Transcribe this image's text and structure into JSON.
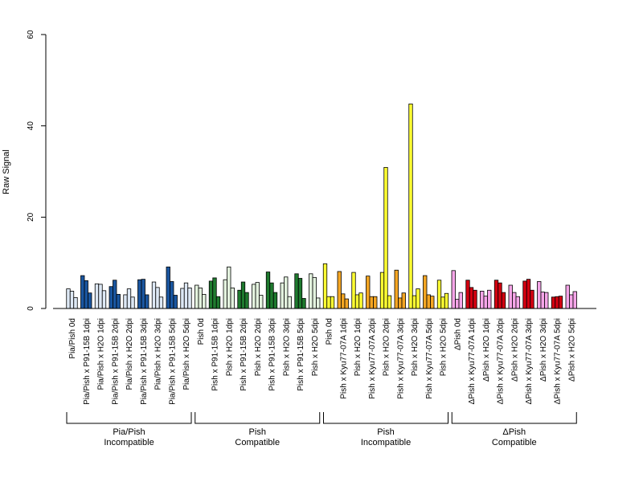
{
  "chart_data": {
    "type": "bar",
    "ylabel": "Raw Signal",
    "ylim": [
      0,
      60
    ],
    "yticks": [
      0,
      20,
      40,
      60
    ],
    "grid": false,
    "legend": "none",
    "bar_border": "#000000",
    "categories": [
      "Pia/Pish 0d",
      "Pia/Pish x P91-15B 1dpi",
      "Pia/Pish x H2O 1dpi",
      "Pia/Pish x P91-15B 2dpi",
      "Pia/Pish x H2O 2dpi",
      "Pia/Pish x P91-15B 3dpi",
      "Pia/Pish x H2O 3dpi",
      "Pia/Pish x P91-15B 5dpi",
      "Pia/Pish x H2O 5dpi",
      "Pish 0d",
      "Pish x P91-15B 1dpi",
      "Pish x H2O 1dpi",
      "Pish x P91-15B 2dpi",
      "Pish x H2O 2dpi",
      "Pish x P91-15B 3dpi",
      "Pish x H2O 3dpi",
      "Pish x P91-15B 5dpi",
      "Pish x H2O 5dpi",
      "Pish 0d",
      "Pish x Kyu77-07A 1dpi",
      "Pish x H2O 1dpi",
      "Pish x Kyu77-07A 2dpi",
      "Pish x H2O 2dpi",
      "Pish x Kyu77-07A 3dpi",
      "Pish x H2O 3dpi",
      "Pish x Kyu77-07A 5dpi",
      "Pish x H2O 5dpi",
      "ΔPish 0d",
      "ΔPish x Kyu77-07A 1dpi",
      "ΔPish x H2O 1dpi",
      "ΔPish x Kyu77-07A 2dpi",
      "ΔPish x H2O 2dpi",
      "ΔPish x Kyu77-07A 3dpi",
      "ΔPish x H2O 3dpi",
      "ΔPish x Kyu77-07A 5dpi",
      "ΔPish x H2O 5dpi"
    ],
    "bar_colors": [
      "#dde8f5",
      "#1a56a0",
      "#dde8f5",
      "#1a56a0",
      "#dde8f5",
      "#1a56a0",
      "#dde8f5",
      "#1a56a0",
      "#dde8f5",
      "#e3f2de",
      "#1e7a2e",
      "#e3f2de",
      "#1e7a2e",
      "#e3f2de",
      "#1e7a2e",
      "#e3f2de",
      "#1e7a2e",
      "#e3f2de",
      "#ffff33",
      "#f5a623",
      "#ffff33",
      "#f5a623",
      "#ffff33",
      "#f5a623",
      "#ffff33",
      "#f5a623",
      "#ffff33",
      "#f5a5e8",
      "#d40010",
      "#f5a5e8",
      "#d40010",
      "#f5a5e8",
      "#d40010",
      "#f5a5e8",
      "#d40010",
      "#f5a5e8"
    ],
    "values": [
      [
        4.3,
        3.8,
        2.4
      ],
      [
        7.2,
        6.1,
        3.4
      ],
      [
        5.4,
        5.3,
        3.9
      ],
      [
        4.8,
        6.2,
        3.1
      ],
      [
        3.0,
        4.3,
        2.5
      ],
      [
        6.3,
        6.4,
        3.0
      ],
      [
        5.8,
        4.6,
        2.5
      ],
      [
        9.1,
        5.9,
        2.9
      ],
      [
        4.4,
        5.6,
        4.5
      ],
      [
        5.1,
        4.5,
        3.1
      ],
      [
        6.0,
        6.7,
        2.6
      ],
      [
        6.3,
        9.1,
        4.5
      ],
      [
        4.0,
        5.8,
        3.5
      ],
      [
        5.3,
        5.7,
        2.9
      ],
      [
        8.0,
        5.6,
        3.5
      ],
      [
        5.6,
        6.9,
        2.6
      ],
      [
        7.6,
        6.6,
        2.2
      ],
      [
        7.6,
        6.8,
        2.3
      ],
      [
        9.8,
        2.6,
        2.6
      ],
      [
        8.1,
        3.2,
        2.1
      ],
      [
        7.9,
        3.0,
        3.4
      ],
      [
        7.1,
        2.6,
        2.6
      ],
      [
        7.9,
        30.9,
        2.8
      ],
      [
        8.4,
        2.3,
        3.4
      ],
      [
        44.8,
        2.8,
        4.3
      ],
      [
        7.2,
        3.0,
        2.7
      ],
      [
        6.2,
        2.5,
        3.3
      ],
      [
        8.3,
        2.0,
        3.5
      ],
      [
        6.2,
        4.6,
        4.0
      ],
      [
        3.8,
        2.7,
        4.0
      ],
      [
        6.2,
        5.6,
        3.5
      ],
      [
        5.1,
        3.5,
        2.6
      ],
      [
        6.0,
        6.4,
        4.0
      ],
      [
        5.9,
        3.6,
        3.5
      ],
      [
        2.5,
        2.6,
        2.7
      ],
      [
        5.1,
        3.0,
        3.7
      ]
    ],
    "group_brackets": [
      {
        "line1": "Pia/Pish",
        "line2": "Incompatible"
      },
      {
        "line1": "Pish",
        "line2": "Compatible"
      },
      {
        "line1": "Pish",
        "line2": "Incompatible"
      },
      {
        "line1": "ΔPish",
        "line2": "Compatible"
      }
    ]
  }
}
